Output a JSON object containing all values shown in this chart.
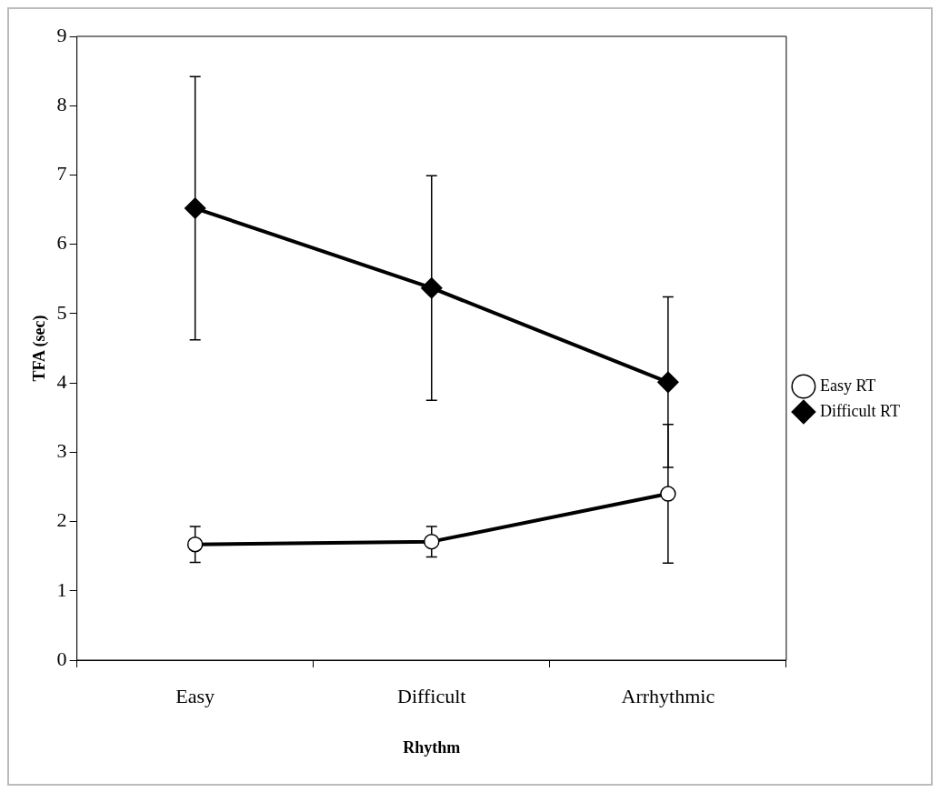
{
  "chart_data": {
    "type": "line",
    "xlabel": "Rhythm",
    "ylabel": "TFA (sec)",
    "categories": [
      "Easy",
      "Difficult",
      "Arrhythmic"
    ],
    "series": [
      {
        "name": "Easy RT",
        "color": "#000000",
        "marker": "circle",
        "values": [
          1.67,
          1.71,
          2.4
        ],
        "errors": [
          0.26,
          0.22,
          1.0
        ]
      },
      {
        "name": "Difficult RT",
        "color": "#000000",
        "marker": "diamond",
        "values": [
          6.52,
          5.37,
          4.01
        ],
        "errors": [
          1.9,
          1.62,
          1.23
        ]
      }
    ],
    "ylim": [
      0,
      9
    ],
    "yticks": [
      0,
      1,
      2,
      3,
      4,
      5,
      6,
      7,
      8,
      9
    ],
    "grid": false,
    "legend": "right",
    "line_style": "solid"
  }
}
